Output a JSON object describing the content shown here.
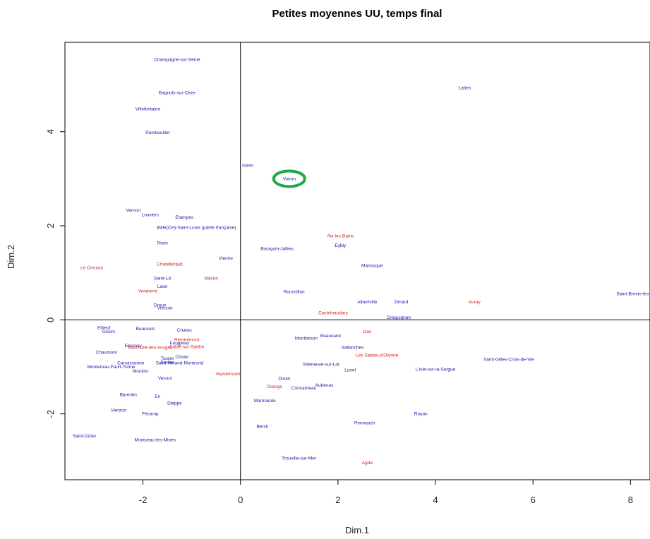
{
  "chart_data": {
    "type": "scatter",
    "title": "Petites moyennes UU, temps final",
    "xlabel": "Dim.1",
    "ylabel": "Dim.2",
    "xlim": [
      -3.6,
      8.4
    ],
    "ylim": [
      -3.4,
      5.9
    ],
    "xticks": [
      -2,
      0,
      2,
      4,
      6,
      8
    ],
    "yticks": [
      -2,
      0,
      2,
      4
    ],
    "grid": false,
    "reference_lines": {
      "x": 0,
      "y": 0
    },
    "colors": {
      "blue": "#1a1aa8",
      "red": "#d42020",
      "highlight": "#1fa84a",
      "frame": "#000000"
    },
    "highlight": {
      "label": "Voiron",
      "x": 1.0,
      "y": 2.97
    },
    "points": [
      {
        "label": "Champagne-sur-Seine",
        "x": -1.3,
        "y": 5.5,
        "color": "blue"
      },
      {
        "label": "Bagnols-sur-Cèze",
        "x": -1.3,
        "y": 4.8,
        "color": "blue"
      },
      {
        "label": "Villefontaine",
        "x": -1.9,
        "y": 4.45,
        "color": "blue"
      },
      {
        "label": "Rambouillet",
        "x": -1.7,
        "y": 3.95,
        "color": "blue"
      },
      {
        "label": "Lattes",
        "x": 4.6,
        "y": 4.9,
        "color": "blue"
      },
      {
        "label": "Istres",
        "x": 0.15,
        "y": 3.25,
        "color": "blue"
      },
      {
        "label": "Voiron",
        "x": 1.0,
        "y": 2.97,
        "color": "blue"
      },
      {
        "label": "Vernon",
        "x": -2.2,
        "y": 2.3,
        "color": "blue"
      },
      {
        "label": "Louviers",
        "x": -1.85,
        "y": 2.2,
        "color": "blue"
      },
      {
        "label": "Etampes",
        "x": -1.15,
        "y": 2.15,
        "color": "blue"
      },
      {
        "label": "Bâle(CH)-Saint-Louis (partie française)",
        "x": -0.9,
        "y": 1.93,
        "color": "blue"
      },
      {
        "label": "Riom",
        "x": -1.6,
        "y": 1.6,
        "color": "blue"
      },
      {
        "label": "Aix-les-Bains",
        "x": 2.05,
        "y": 1.75,
        "color": "red"
      },
      {
        "label": "Bourgoin-Jallieu",
        "x": 0.75,
        "y": 1.48,
        "color": "blue"
      },
      {
        "label": "Eybly",
        "x": 2.05,
        "y": 1.55,
        "color": "blue"
      },
      {
        "label": "Vienne",
        "x": -0.3,
        "y": 1.28,
        "color": "blue"
      },
      {
        "label": "Manosque",
        "x": 2.7,
        "y": 1.12,
        "color": "blue"
      },
      {
        "label": "Le Creusot",
        "x": -3.05,
        "y": 1.08,
        "color": "red"
      },
      {
        "label": "Chatellerault",
        "x": -1.45,
        "y": 1.15,
        "color": "red"
      },
      {
        "label": "Mâcon",
        "x": -0.6,
        "y": 0.85,
        "color": "red"
      },
      {
        "label": "Saint-Lô",
        "x": -1.6,
        "y": 0.85,
        "color": "blue"
      },
      {
        "label": "Laon",
        "x": -1.6,
        "y": 0.68,
        "color": "blue"
      },
      {
        "label": "Vendome",
        "x": -1.9,
        "y": 0.58,
        "color": "red"
      },
      {
        "label": "Roussillon",
        "x": 1.1,
        "y": 0.57,
        "color": "blue"
      },
      {
        "label": "Saint-Brevin-les-Pins",
        "x": 8.15,
        "y": 0.52,
        "color": "blue"
      },
      {
        "label": "Albertville",
        "x": 2.6,
        "y": 0.35,
        "color": "blue"
      },
      {
        "label": "Dinard",
        "x": 3.3,
        "y": 0.35,
        "color": "blue"
      },
      {
        "label": "Auray",
        "x": 4.8,
        "y": 0.35,
        "color": "red"
      },
      {
        "label": "Dreux",
        "x": -1.65,
        "y": 0.28,
        "color": "blue"
      },
      {
        "label": "Vierzon",
        "x": -1.55,
        "y": 0.22,
        "color": "blue"
      },
      {
        "label": "Castelnaudary",
        "x": 1.9,
        "y": 0.12,
        "color": "red"
      },
      {
        "label": "Draguignan",
        "x": 3.25,
        "y": 0.02,
        "color": "blue"
      },
      {
        "label": "Elbeuf",
        "x": -2.8,
        "y": -0.2,
        "color": "blue"
      },
      {
        "label": "Gisors",
        "x": -2.7,
        "y": -0.28,
        "color": "blue"
      },
      {
        "label": "Beauvais",
        "x": -1.95,
        "y": -0.22,
        "color": "blue"
      },
      {
        "label": "Chatou",
        "x": -1.15,
        "y": -0.25,
        "color": "blue"
      },
      {
        "label": "Montbrison",
        "x": 1.35,
        "y": -0.42,
        "color": "blue"
      },
      {
        "label": "Beaucaire",
        "x": 1.85,
        "y": -0.37,
        "color": "blue"
      },
      {
        "label": "Dax",
        "x": 2.6,
        "y": -0.28,
        "color": "red"
      },
      {
        "label": "Remiremont",
        "x": -1.1,
        "y": -0.45,
        "color": "red"
      },
      {
        "label": "Fougères",
        "x": -1.25,
        "y": -0.53,
        "color": "blue"
      },
      {
        "label": "Epernay",
        "x": -2.2,
        "y": -0.58,
        "color": "blue"
      },
      {
        "label": "Saint-Dié-des-Vosges",
        "x": -1.85,
        "y": -0.62,
        "color": "red"
      },
      {
        "label": "Sablé-sur-Sarthe",
        "x": -1.1,
        "y": -0.6,
        "color": "red"
      },
      {
        "label": "Sallanches",
        "x": 2.3,
        "y": -0.62,
        "color": "blue"
      },
      {
        "label": "Chaumont",
        "x": -2.75,
        "y": -0.72,
        "color": "blue"
      },
      {
        "label": "Les Sables-d'Olonne",
        "x": 2.8,
        "y": -0.78,
        "color": "red"
      },
      {
        "label": "Saint-Gilles-Croix-de-Vie",
        "x": 5.5,
        "y": -0.87,
        "color": "blue"
      },
      {
        "label": "Tarare",
        "x": -1.5,
        "y": -0.85,
        "color": "blue"
      },
      {
        "label": "Cholet",
        "x": -1.2,
        "y": -0.82,
        "color": "blue"
      },
      {
        "label": "Carcassonne",
        "x": -2.25,
        "y": -0.95,
        "color": "blue"
      },
      {
        "label": "Sedan",
        "x": -1.5,
        "y": -0.93,
        "color": "blue"
      },
      {
        "label": "Montereau-Fault-Yonne",
        "x": -2.65,
        "y": -1.03,
        "color": "blue"
      },
      {
        "label": "Saint-Amand-Montrond",
        "x": -1.25,
        "y": -0.95,
        "color": "blue"
      },
      {
        "label": "Villeneuve-sur-Lot",
        "x": 1.65,
        "y": -0.98,
        "color": "blue"
      },
      {
        "label": "L'Isle-sur-la-Sorgue",
        "x": 4.0,
        "y": -1.08,
        "color": "blue"
      },
      {
        "label": "Lunel",
        "x": 2.25,
        "y": -1.1,
        "color": "blue"
      },
      {
        "label": "Moulins",
        "x": -2.05,
        "y": -1.12,
        "color": "blue"
      },
      {
        "label": "Hazebrouck",
        "x": -0.25,
        "y": -1.18,
        "color": "red"
      },
      {
        "label": "Vesoul",
        "x": -1.55,
        "y": -1.27,
        "color": "blue"
      },
      {
        "label": "Dinan",
        "x": 0.9,
        "y": -1.28,
        "color": "blue"
      },
      {
        "label": "Aubenas",
        "x": 1.72,
        "y": -1.42,
        "color": "blue"
      },
      {
        "label": "Orange",
        "x": 0.7,
        "y": -1.45,
        "color": "red"
      },
      {
        "label": "Concarneau",
        "x": 1.3,
        "y": -1.48,
        "color": "blue"
      },
      {
        "label": "Barentin",
        "x": -2.3,
        "y": -1.62,
        "color": "blue"
      },
      {
        "label": "Eu",
        "x": -1.7,
        "y": -1.65,
        "color": "blue"
      },
      {
        "label": "Dieppe",
        "x": -1.35,
        "y": -1.8,
        "color": "blue"
      },
      {
        "label": "Marmande",
        "x": 0.5,
        "y": -1.75,
        "color": "blue"
      },
      {
        "label": "Vierzon",
        "x": -2.5,
        "y": -1.95,
        "color": "blue"
      },
      {
        "label": "Fécamp",
        "x": -1.85,
        "y": -2.03,
        "color": "blue"
      },
      {
        "label": "Royan",
        "x": 3.7,
        "y": -2.03,
        "color": "blue"
      },
      {
        "label": "Penmarch",
        "x": 2.55,
        "y": -2.22,
        "color": "blue"
      },
      {
        "label": "Berck",
        "x": 0.45,
        "y": -2.3,
        "color": "blue"
      },
      {
        "label": "Saint-Dizier",
        "x": -3.2,
        "y": -2.5,
        "color": "blue"
      },
      {
        "label": "Montceau-les-Mines",
        "x": -1.75,
        "y": -2.58,
        "color": "blue"
      },
      {
        "label": "Trouville-sur-Mer",
        "x": 1.2,
        "y": -2.97,
        "color": "blue"
      },
      {
        "label": "Agde",
        "x": 2.6,
        "y": -3.07,
        "color": "red"
      }
    ]
  }
}
